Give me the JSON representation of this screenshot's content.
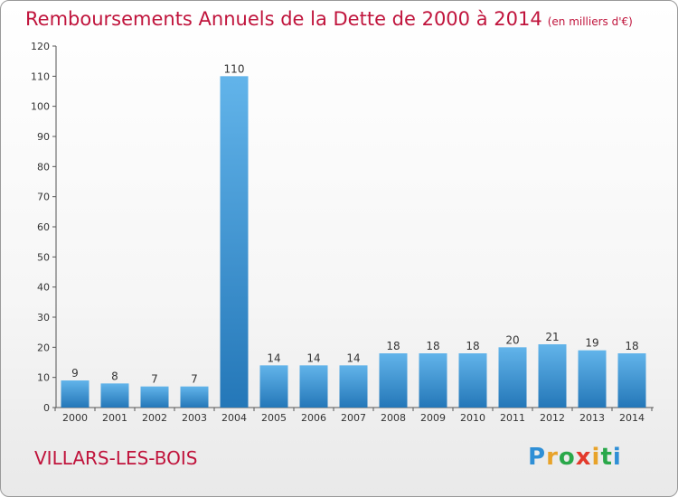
{
  "header": {
    "title": "Remboursements Annuels de la Dette de 2000 à 2014",
    "unit": "(en milliers d'€)"
  },
  "footer": {
    "commune": "VILLARS-LES-BOIS",
    "brand": "Proxiti"
  },
  "colors": {
    "title": "#c0143c",
    "bar_top": "#62b4ea",
    "bar_bottom": "#2477b8"
  },
  "chart_data": {
    "type": "bar",
    "title": "Remboursements Annuels de la Dette de 2000 à 2014",
    "xlabel": "",
    "ylabel": "",
    "categories": [
      "2000",
      "2001",
      "2002",
      "2003",
      "2004",
      "2005",
      "2006",
      "2007",
      "2008",
      "2009",
      "2010",
      "2011",
      "2012",
      "2013",
      "2014"
    ],
    "values": [
      9,
      8,
      7,
      7,
      110,
      14,
      14,
      14,
      18,
      18,
      18,
      20,
      21,
      19,
      18
    ],
    "ylim": [
      0,
      120
    ],
    "yticks": [
      0,
      10,
      20,
      30,
      40,
      50,
      60,
      70,
      80,
      90,
      100,
      110,
      120
    ],
    "grid": false,
    "data_labels": true
  }
}
